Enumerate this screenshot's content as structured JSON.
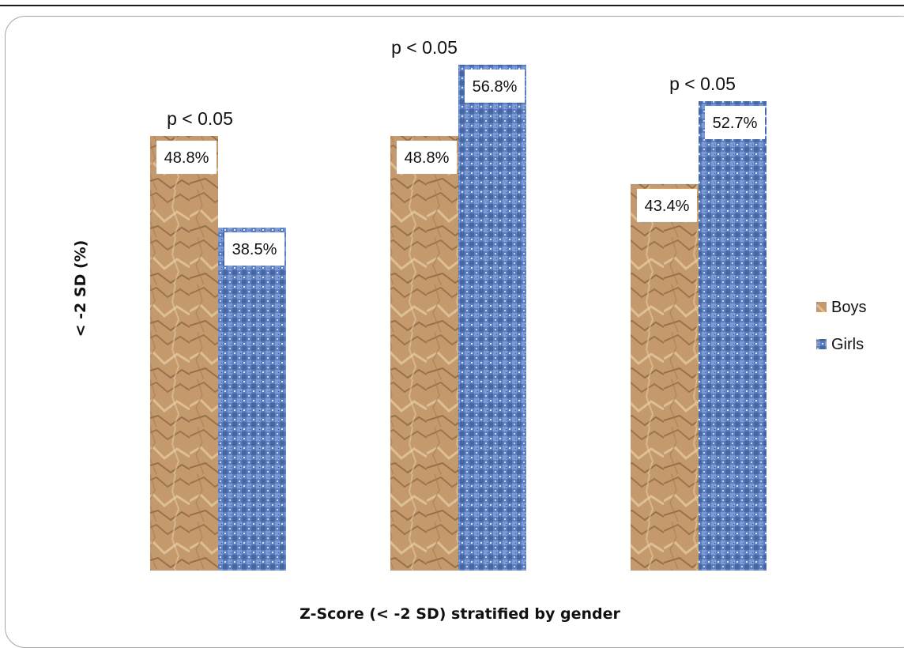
{
  "chart_data": {
    "type": "bar",
    "categories": [
      "",
      "",
      ""
    ],
    "series": [
      {
        "name": "Boys",
        "values": [
          48.8,
          48.8,
          43.4
        ],
        "labels": [
          "48.8%",
          "48.8%",
          "43.4%"
        ],
        "color": "#c49a6c"
      },
      {
        "name": "Girls",
        "values": [
          38.5,
          56.8,
          52.7
        ],
        "labels": [
          "38.5%",
          "56.8%",
          "52.7%"
        ],
        "color": "#5b7ec2"
      }
    ],
    "annotations": [
      "p < 0.05",
      "p < 0.05",
      "p < 0.05"
    ],
    "title": "",
    "xlabel": "Z-Score (< -2 SD) stratified by gender",
    "ylabel": "< -2 SD (%)",
    "ylim": [
      0,
      60
    ],
    "grid": false,
    "legend_position": "right"
  }
}
